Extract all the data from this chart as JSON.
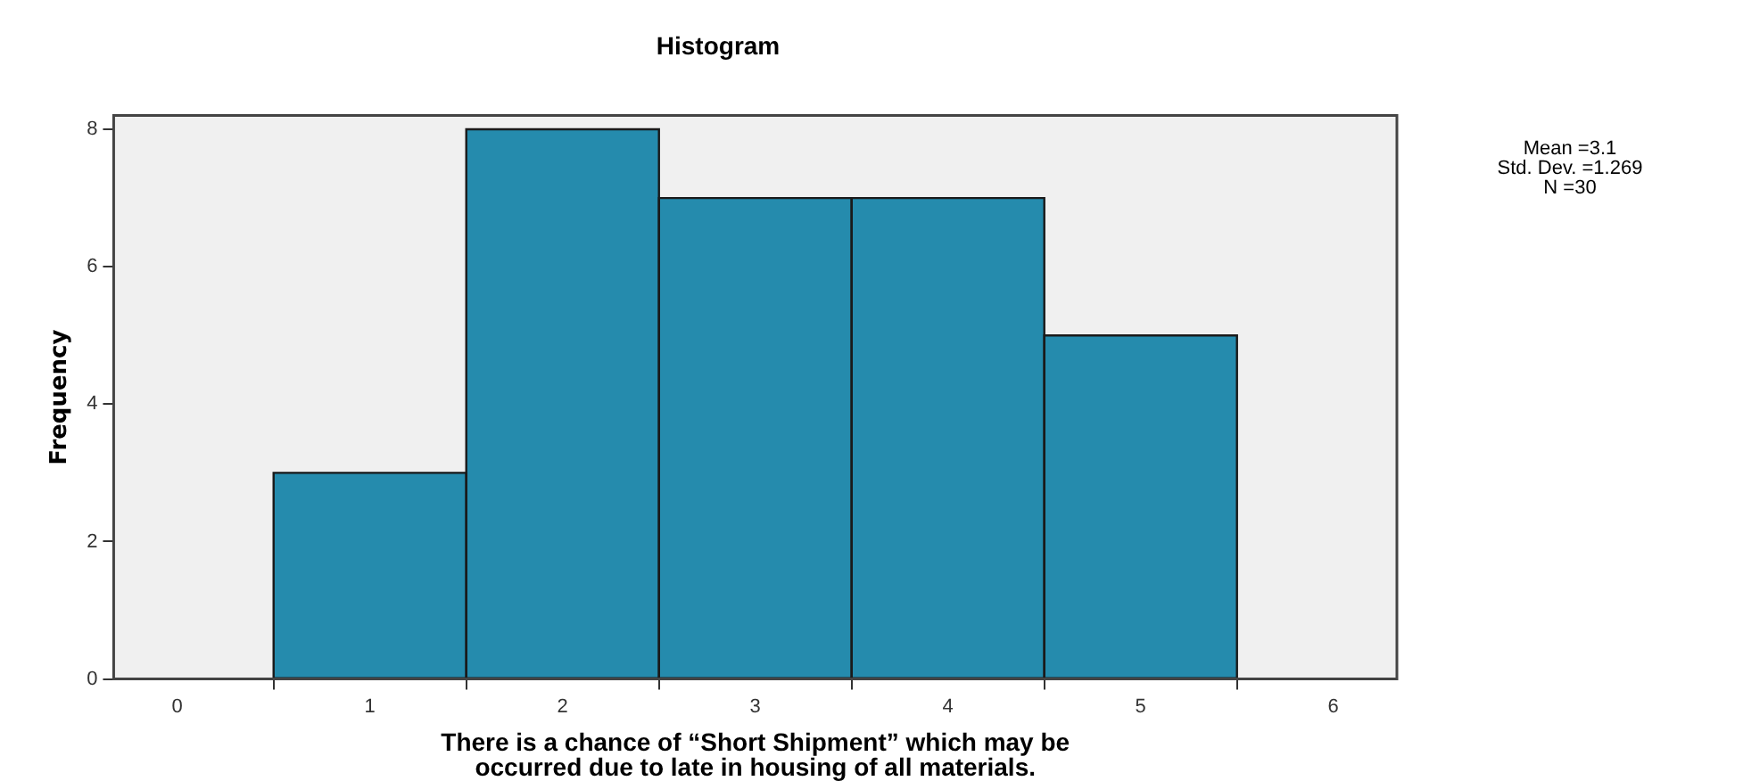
{
  "chart_data": {
    "type": "histogram",
    "title": "Histogram",
    "xlabel": "There is a chance of “Short Shipment” which may be occurred due to late in housing of all materials.",
    "ylabel": "Frequency",
    "bins": [
      0.5,
      1.5,
      2.5,
      3.5,
      4.5,
      5.5
    ],
    "values": [
      3,
      8,
      7,
      7,
      5
    ],
    "color": "#258bad",
    "xlim": [
      -0.33,
      6.33
    ],
    "xticks": [
      0,
      1,
      2,
      3,
      4,
      5,
      6
    ],
    "ylim": [
      0,
      8.2
    ],
    "yticks": [
      0,
      2,
      4,
      6,
      8
    ],
    "grid": false,
    "legend": false,
    "annotations": [
      "Mean =3.1",
      "Std. Dev. =1.269",
      "N =30"
    ]
  }
}
